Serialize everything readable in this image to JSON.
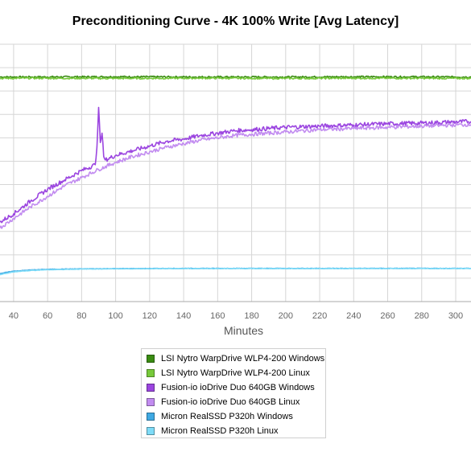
{
  "chart_data": {
    "type": "line",
    "title": "Preconditioning Curve - 4K 100% Write [Avg Latency]",
    "xlabel": "Minutes",
    "ylabel": "",
    "xlim": [
      32,
      309
    ],
    "ylim": [
      0,
      11
    ],
    "x_ticks": [
      40,
      60,
      80,
      100,
      120,
      140,
      160,
      180,
      200,
      220,
      240,
      260,
      280,
      300
    ],
    "grid": true,
    "legend_position": "bottom",
    "series": [
      {
        "name": "LSI Nytro WarpDrive WLP4-200 Windows",
        "color": "#3a8c12",
        "x": [
          32,
          50,
          100,
          150,
          200,
          250,
          309
        ],
        "y": [
          9.6,
          9.6,
          9.61,
          9.6,
          9.6,
          9.61,
          9.6
        ]
      },
      {
        "name": "LSI Nytro WarpDrive WLP4-200 Linux",
        "color": "#77c93a",
        "x": [
          32,
          50,
          100,
          150,
          200,
          250,
          309
        ],
        "y": [
          9.54,
          9.55,
          9.54,
          9.55,
          9.54,
          9.55,
          9.54
        ]
      },
      {
        "name": "Fusion-io ioDrive Duo 640GB Windows",
        "color": "#9b45e0",
        "x": [
          32,
          40,
          50,
          60,
          70,
          80,
          88,
          89,
          90,
          91,
          92,
          93,
          94,
          100,
          110,
          120,
          130,
          140,
          150,
          160,
          170,
          180,
          200,
          220,
          240,
          260,
          280,
          300,
          309
        ],
        "y": [
          3.4,
          3.75,
          4.3,
          4.8,
          5.2,
          5.6,
          5.85,
          6.6,
          8.3,
          6.8,
          7.2,
          6.2,
          6.05,
          6.25,
          6.45,
          6.65,
          6.85,
          6.95,
          7.1,
          7.2,
          7.3,
          7.35,
          7.45,
          7.5,
          7.55,
          7.6,
          7.63,
          7.68,
          7.7
        ]
      },
      {
        "name": "Fusion-io ioDrive Duo 640GB Linux",
        "color": "#c28cf0",
        "x": [
          32,
          40,
          50,
          60,
          70,
          80,
          90,
          100,
          110,
          120,
          130,
          140,
          150,
          160,
          170,
          180,
          200,
          220,
          240,
          260,
          280,
          300,
          309
        ],
        "y": [
          3.15,
          3.55,
          4.05,
          4.5,
          4.95,
          5.3,
          5.65,
          5.95,
          6.2,
          6.4,
          6.6,
          6.75,
          6.9,
          7.0,
          7.1,
          7.15,
          7.25,
          7.35,
          7.4,
          7.45,
          7.5,
          7.55,
          7.57
        ]
      },
      {
        "name": "Micron RealSSD P320h Windows",
        "color": "#3fa9e3",
        "x": [
          32,
          40,
          50,
          60,
          80,
          100,
          150,
          200,
          250,
          309
        ],
        "y": [
          1.2,
          1.3,
          1.35,
          1.38,
          1.4,
          1.41,
          1.42,
          1.42,
          1.42,
          1.42
        ]
      },
      {
        "name": "Micron RealSSD P320h Linux",
        "color": "#7fdcf8",
        "x": [
          32,
          40,
          50,
          60,
          80,
          100,
          150,
          200,
          250,
          309
        ],
        "y": [
          1.15,
          1.27,
          1.33,
          1.36,
          1.39,
          1.4,
          1.41,
          1.41,
          1.41,
          1.41
        ]
      }
    ]
  }
}
